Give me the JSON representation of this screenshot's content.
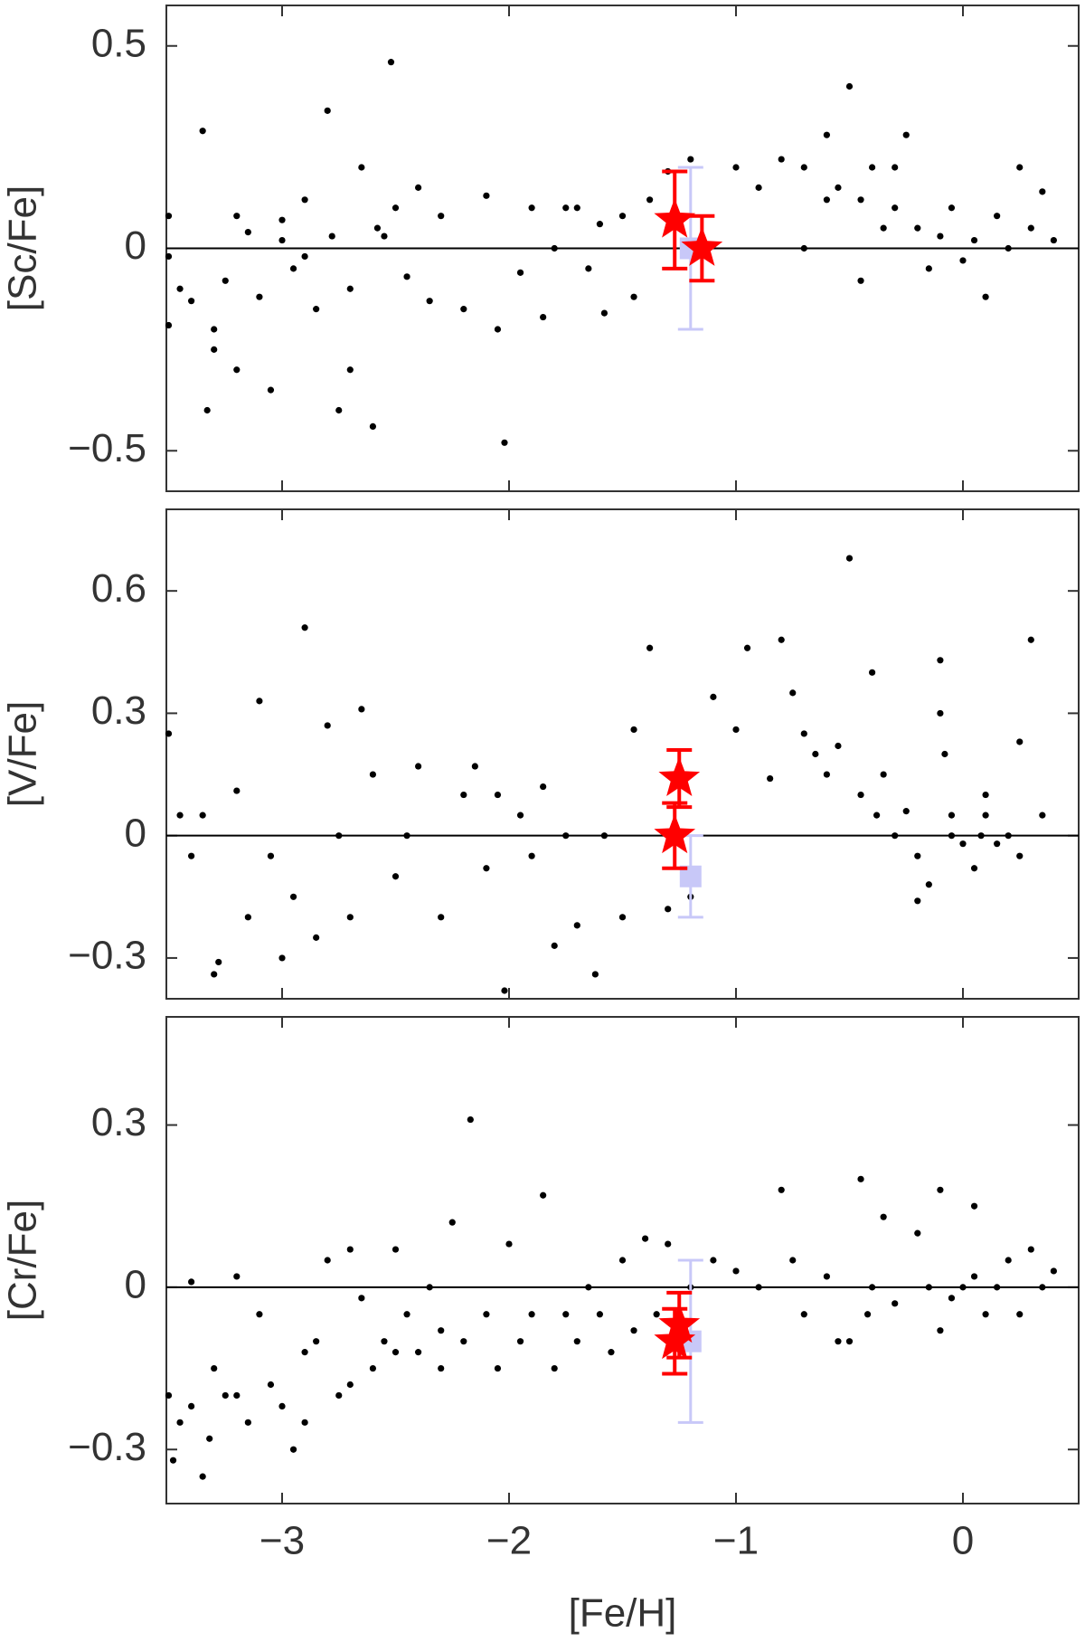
{
  "chart_data": [
    {
      "type": "scatter",
      "ylabel": "[Sc/Fe]",
      "xlim": [
        -3.51,
        0.51
      ],
      "ylim": [
        -0.6,
        0.6
      ],
      "yticks": [
        {
          "value": 0.5,
          "label": "0.5"
        },
        0,
        {
          "value": -0.5,
          "label": "−0.5"
        }
      ],
      "series": [
        {
          "marker": "dot",
          "color": "#000000",
          "x": [
            -3.5,
            -3.5,
            -3.5,
            -3.45,
            -3.4,
            -3.35,
            -3.33,
            -3.3,
            -3.25,
            -3.2,
            -3.15,
            -3.1,
            -3.05,
            -3.0,
            -2.95,
            -2.9,
            -2.85,
            -2.8,
            -2.78,
            -2.7,
            -2.65,
            -2.6,
            -2.58,
            -2.52,
            -2.5,
            -2.45,
            -2.35,
            -2.3,
            -2.2,
            -2.1,
            -2.05,
            -2.02,
            -1.95,
            -1.9,
            -1.85,
            -1.8,
            -1.75,
            -1.7,
            -1.65,
            -1.6,
            -1.58,
            -1.5,
            -1.45,
            -1.38,
            -1.3,
            -1.2,
            -1.0,
            -0.9,
            -0.8,
            -0.7,
            -0.6,
            -0.55,
            -0.5,
            -0.45,
            -0.4,
            -0.35,
            -0.3,
            -0.25,
            -0.2,
            -0.15,
            -0.1,
            -0.05,
            0.0,
            0.05,
            0.1,
            0.15,
            0.2,
            0.25,
            0.3,
            0.35,
            0.4,
            -0.7,
            -0.6,
            -0.45,
            -0.3,
            -3.0,
            -2.9,
            -2.75,
            -2.7,
            -2.55,
            -3.2,
            -3.3,
            -2.4
          ],
          "values": [
            0.08,
            -0.02,
            -0.19,
            -0.1,
            -0.13,
            0.29,
            -0.4,
            -0.25,
            -0.08,
            -0.3,
            0.04,
            -0.12,
            -0.35,
            0.07,
            -0.05,
            0.12,
            -0.15,
            0.34,
            0.03,
            -0.1,
            0.2,
            -0.44,
            0.05,
            0.46,
            0.1,
            -0.07,
            -0.13,
            0.08,
            -0.15,
            0.13,
            -0.2,
            -0.48,
            -0.06,
            0.1,
            -0.17,
            0.0,
            0.1,
            0.1,
            -0.05,
            0.06,
            -0.16,
            0.08,
            -0.12,
            0.12,
            0.19,
            0.22,
            0.2,
            0.15,
            0.22,
            0.2,
            0.28,
            0.15,
            0.4,
            0.12,
            0.2,
            0.05,
            0.1,
            0.28,
            0.05,
            -0.05,
            0.03,
            0.1,
            -0.03,
            0.02,
            -0.12,
            0.08,
            0.0,
            0.2,
            0.05,
            0.14,
            0.02,
            0.0,
            0.12,
            -0.08,
            0.2,
            0.02,
            -0.02,
            -0.4,
            -0.3,
            0.03,
            0.08,
            -0.2,
            0.15
          ]
        },
        {
          "marker": "star",
          "color": "#ff0000",
          "x": [
            -1.27,
            -1.15
          ],
          "values": [
            0.07,
            0.0
          ],
          "errors": [
            0.12,
            0.08
          ]
        },
        {
          "marker": "square",
          "color": "#c8c8f8",
          "x": [
            -1.2
          ],
          "values": [
            0.0
          ],
          "errors": [
            0.2
          ]
        }
      ]
    },
    {
      "type": "scatter",
      "ylabel": "[V/Fe]",
      "xlim": [
        -3.51,
        0.51
      ],
      "ylim": [
        -0.4,
        0.8
      ],
      "yticks": [
        {
          "value": 0.6,
          "label": "0.6"
        },
        {
          "value": 0.3,
          "label": "0.3"
        },
        0,
        {
          "value": -0.3,
          "label": "−0.3"
        }
      ],
      "series": [
        {
          "marker": "dot",
          "color": "#000000",
          "x": [
            -3.5,
            -3.45,
            -3.4,
            -3.35,
            -3.3,
            -3.28,
            -3.2,
            -3.15,
            -3.1,
            -3.05,
            -3.0,
            -2.95,
            -2.9,
            -2.85,
            -2.8,
            -2.75,
            -2.7,
            -2.65,
            -2.6,
            -2.5,
            -2.45,
            -2.4,
            -2.3,
            -2.2,
            -2.15,
            -2.1,
            -2.05,
            -2.02,
            -1.95,
            -1.9,
            -1.85,
            -1.8,
            -1.75,
            -1.7,
            -1.62,
            -1.58,
            -1.5,
            -1.45,
            -1.38,
            -1.3,
            -1.2,
            -1.1,
            -1.0,
            -0.95,
            -0.85,
            -0.8,
            -0.75,
            -0.7,
            -0.65,
            -0.6,
            -0.55,
            -0.5,
            -0.45,
            -0.4,
            -0.38,
            -0.35,
            -0.3,
            -0.25,
            -0.2,
            -0.15,
            -0.1,
            -0.05,
            0.0,
            0.05,
            0.1,
            0.15,
            0.2,
            0.25,
            0.3,
            0.35,
            -0.1,
            -0.08,
            0.08,
            -0.2,
            0.25,
            -0.05,
            0.1
          ],
          "values": [
            0.25,
            0.05,
            -0.05,
            0.05,
            -0.34,
            -0.31,
            0.11,
            -0.2,
            0.33,
            -0.05,
            -0.3,
            -0.15,
            0.51,
            -0.25,
            0.27,
            0.0,
            -0.2,
            0.31,
            0.15,
            -0.1,
            0.0,
            0.17,
            -0.2,
            0.1,
            0.17,
            -0.08,
            0.1,
            -0.38,
            0.05,
            -0.05,
            0.12,
            -0.27,
            0.0,
            -0.22,
            -0.34,
            0.0,
            -0.2,
            0.26,
            0.46,
            -0.18,
            -0.15,
            0.34,
            0.26,
            0.46,
            0.14,
            0.48,
            0.35,
            0.25,
            0.2,
            0.15,
            0.22,
            0.68,
            0.1,
            0.4,
            0.05,
            0.15,
            0.0,
            0.06,
            -0.05,
            -0.12,
            0.3,
            0.0,
            -0.02,
            -0.08,
            0.05,
            -0.02,
            0.0,
            0.23,
            0.48,
            0.05,
            0.43,
            0.2,
            0.0,
            -0.16,
            -0.05,
            0.05,
            0.1
          ]
        },
        {
          "marker": "star",
          "color": "#ff0000",
          "x": [
            -1.25,
            -1.27
          ],
          "values": [
            0.14,
            0.0
          ],
          "errors": [
            0.07,
            0.08
          ]
        },
        {
          "marker": "square",
          "color": "#c8c8f8",
          "x": [
            -1.2
          ],
          "values": [
            -0.1
          ],
          "errors": [
            0.1
          ]
        }
      ]
    },
    {
      "type": "scatter",
      "ylabel": "[Cr/Fe]",
      "xlabel": "[Fe/H]",
      "xlim": [
        -3.51,
        0.51
      ],
      "ylim": [
        -0.4,
        0.5
      ],
      "xticks": [
        {
          "value": -3,
          "label": "−3"
        },
        {
          "value": -2,
          "label": "−2"
        },
        {
          "value": -1,
          "label": "−1"
        },
        0
      ],
      "yticks": [
        {
          "value": 0.3,
          "label": "0.3"
        },
        0,
        {
          "value": -0.3,
          "label": "−0.3"
        }
      ],
      "series": [
        {
          "marker": "dot",
          "color": "#000000",
          "x": [
            -3.5,
            -3.48,
            -3.45,
            -3.4,
            -3.35,
            -3.32,
            -3.3,
            -3.25,
            -3.2,
            -3.15,
            -3.1,
            -3.05,
            -3.0,
            -2.95,
            -2.9,
            -2.85,
            -2.8,
            -2.75,
            -2.7,
            -2.65,
            -2.6,
            -2.55,
            -2.5,
            -2.45,
            -2.4,
            -2.35,
            -2.3,
            -2.25,
            -2.2,
            -2.17,
            -2.1,
            -2.05,
            -2.0,
            -1.95,
            -1.9,
            -1.85,
            -1.8,
            -1.75,
            -1.7,
            -1.65,
            -1.6,
            -1.55,
            -1.5,
            -1.45,
            -1.4,
            -1.35,
            -1.3,
            -1.2,
            -1.1,
            -1.0,
            -0.9,
            -0.8,
            -0.75,
            -0.7,
            -0.6,
            -0.5,
            -0.45,
            -0.4,
            -0.35,
            -0.3,
            -0.2,
            -0.1,
            -0.05,
            0.0,
            0.05,
            0.1,
            0.15,
            0.2,
            0.25,
            0.3,
            0.35,
            0.4,
            -0.55,
            -0.42,
            -0.1,
            -0.15,
            0.05,
            -3.4,
            -3.2,
            -2.9,
            -2.7,
            -2.5,
            -2.3
          ],
          "values": [
            -0.2,
            -0.32,
            -0.25,
            0.01,
            -0.35,
            -0.28,
            -0.15,
            -0.2,
            0.02,
            -0.25,
            -0.05,
            -0.18,
            -0.22,
            -0.3,
            -0.12,
            -0.1,
            0.05,
            -0.2,
            0.07,
            -0.02,
            -0.15,
            -0.1,
            0.07,
            -0.05,
            -0.12,
            0.0,
            -0.08,
            0.12,
            -0.1,
            0.31,
            -0.05,
            -0.15,
            0.08,
            -0.1,
            -0.05,
            0.17,
            -0.15,
            -0.05,
            -0.1,
            0.0,
            -0.05,
            -0.12,
            0.05,
            -0.08,
            0.09,
            -0.05,
            0.08,
            0.0,
            0.05,
            0.03,
            0.0,
            0.18,
            0.05,
            -0.05,
            0.02,
            -0.1,
            0.2,
            0.0,
            0.13,
            -0.03,
            0.1,
            0.18,
            -0.02,
            0.0,
            0.15,
            -0.05,
            0.0,
            0.05,
            -0.05,
            0.07,
            0.0,
            0.03,
            -0.1,
            -0.05,
            -0.08,
            0.0,
            0.02,
            -0.22,
            -0.2,
            -0.25,
            -0.18,
            -0.12,
            -0.15
          ]
        },
        {
          "marker": "star",
          "color": "#ff0000",
          "x": [
            -1.25,
            -1.27
          ],
          "values": [
            -0.07,
            -0.1
          ],
          "errors": [
            0.06,
            0.06
          ]
        },
        {
          "marker": "square",
          "color": "#c8c8f8",
          "x": [
            -1.2
          ],
          "values": [
            -0.1
          ],
          "errors": [
            0.15
          ]
        }
      ]
    }
  ]
}
